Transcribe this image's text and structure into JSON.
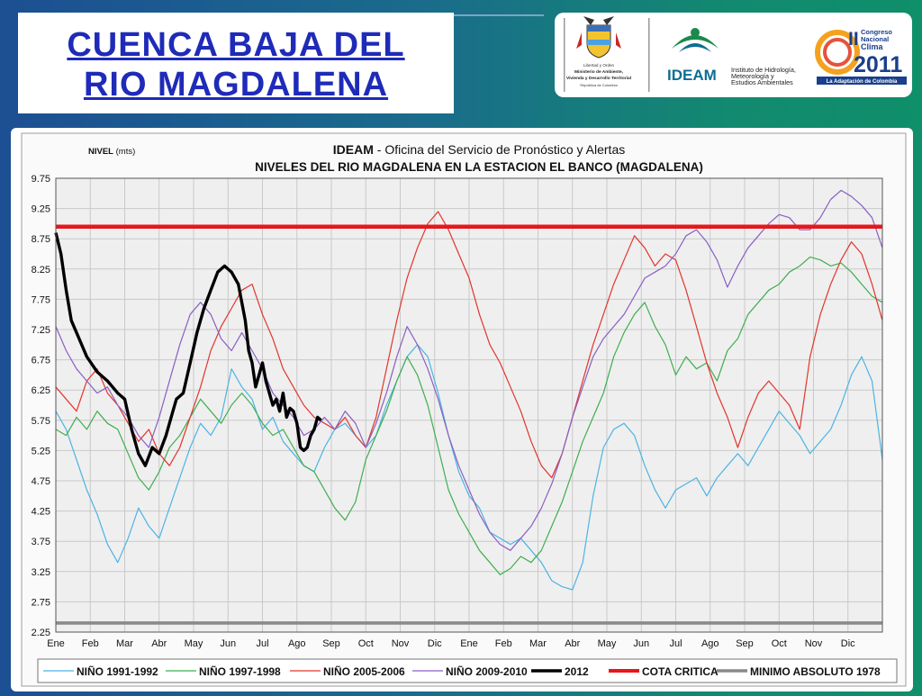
{
  "header": {
    "title_line1": "CUENCA  BAJA  DEL",
    "title_line2": "RIO  MAGDALENA"
  },
  "logos": {
    "ministerio": {
      "line1": "Libertad y Orden",
      "line2": "Ministerio de Ambiente,",
      "line3": "Vivienda y Desarrollo Territorial",
      "line4": "República de Colombia"
    },
    "ideam": {
      "name": "IDEAM",
      "line1": "Instituto de Hidrología,",
      "line2": "Meteorología y",
      "line3": "Estudios Ambientales"
    },
    "congreso": {
      "numeral": "II",
      "line1": "Congreso",
      "line2": "Nacional",
      "line3": "Clima",
      "year": "2011",
      "tagline": "La Adaptación de Colombia"
    }
  },
  "chart_data": {
    "type": "line",
    "title_prefix": "IDEAM",
    "title_rest": " - Oficina del Servicio de Pronóstico y Alertas",
    "subtitle": "NIVELES DEL RIO MAGDALENA EN LA ESTACION EL BANCO (MAGDALENA)",
    "ylabel_main": "NIVEL",
    "ylabel_unit": " (mts)",
    "ylim": [
      2.25,
      9.75
    ],
    "yticks": [
      "9.75",
      "9.25",
      "8.75",
      "8.25",
      "7.75",
      "7.25",
      "6.75",
      "6.25",
      "5.75",
      "5.25",
      "4.75",
      "4.25",
      "3.75",
      "3.25",
      "2.75",
      "2.25"
    ],
    "xlim": [
      0,
      24
    ],
    "x_tick_labels": [
      "Ene",
      "Feb",
      "Mar",
      "Abr",
      "May",
      "Jun",
      "Jul",
      "Ago",
      "Sep",
      "Oct",
      "Nov",
      "Dic",
      "Ene",
      "Feb",
      "Mar",
      "Abr",
      "May",
      "Jun",
      "Jul",
      "Ago",
      "Sep",
      "Oct",
      "Nov",
      "Dic"
    ],
    "grid": true,
    "legend_position": "bottom",
    "series": [
      {
        "name": "NIÑO 1991-1992",
        "color": "#4cb4e3",
        "width": 1.2,
        "x": [
          0,
          0.3,
          0.6,
          0.9,
          1.2,
          1.5,
          1.8,
          2.1,
          2.4,
          2.7,
          3.0,
          3.3,
          3.6,
          3.9,
          4.2,
          4.5,
          4.8,
          5.1,
          5.4,
          5.7,
          6.0,
          6.3,
          6.6,
          6.9,
          7.2,
          7.5,
          7.8,
          8.1,
          8.4,
          8.7,
          9.0,
          9.3,
          9.6,
          9.9,
          10.2,
          10.5,
          10.8,
          11.1,
          11.4,
          11.7,
          12.0,
          12.3,
          12.6,
          12.9,
          13.2,
          13.5,
          13.8,
          14.1,
          14.4,
          14.7,
          15.0,
          15.3,
          15.6,
          15.9,
          16.2,
          16.5,
          16.8,
          17.1,
          17.4,
          17.7,
          18.0,
          18.3,
          18.6,
          18.9,
          19.2,
          19.5,
          19.8,
          20.1,
          20.4,
          20.7,
          21.0,
          21.3,
          21.6,
          21.9,
          22.2,
          22.5,
          22.8,
          23.1,
          23.4,
          23.7,
          24.0
        ],
        "y": [
          5.9,
          5.6,
          5.1,
          4.6,
          4.2,
          3.7,
          3.4,
          3.8,
          4.3,
          4.0,
          3.8,
          4.3,
          4.8,
          5.3,
          5.7,
          5.5,
          5.8,
          6.6,
          6.3,
          6.1,
          5.6,
          5.8,
          5.4,
          5.2,
          5.0,
          4.9,
          5.3,
          5.6,
          5.7,
          5.5,
          5.3,
          5.5,
          6.0,
          6.4,
          6.8,
          7.0,
          6.8,
          6.2,
          5.5,
          4.9,
          4.5,
          4.3,
          3.9,
          3.8,
          3.7,
          3.8,
          3.6,
          3.4,
          3.1,
          3.0,
          2.95,
          3.4,
          4.5,
          5.3,
          5.6,
          5.7,
          5.5,
          5.0,
          4.6,
          4.3,
          4.6,
          4.7,
          4.8,
          4.5,
          4.8,
          5.0,
          5.2,
          5.0,
          5.3,
          5.6,
          5.9,
          5.7,
          5.5,
          5.2,
          5.4,
          5.6,
          6.0,
          6.5,
          6.8,
          6.4,
          5.1
        ]
      },
      {
        "name": "NIÑO 1997-1998",
        "color": "#3fae4f",
        "width": 1.2,
        "x": [
          0,
          0.3,
          0.6,
          0.9,
          1.2,
          1.5,
          1.8,
          2.1,
          2.4,
          2.7,
          3.0,
          3.3,
          3.6,
          3.9,
          4.2,
          4.5,
          4.8,
          5.1,
          5.4,
          5.7,
          6.0,
          6.3,
          6.6,
          6.9,
          7.2,
          7.5,
          7.8,
          8.1,
          8.4,
          8.7,
          9.0,
          9.3,
          9.6,
          9.9,
          10.2,
          10.5,
          10.8,
          11.1,
          11.4,
          11.7,
          12.0,
          12.3,
          12.6,
          12.9,
          13.2,
          13.5,
          13.8,
          14.1,
          14.4,
          14.7,
          15.0,
          15.3,
          15.6,
          15.9,
          16.2,
          16.5,
          16.8,
          17.1,
          17.4,
          17.7,
          18.0,
          18.3,
          18.6,
          18.9,
          19.2,
          19.5,
          19.8,
          20.1,
          20.4,
          20.7,
          21.0,
          21.3,
          21.6,
          21.9,
          22.2,
          22.5,
          22.8,
          23.1,
          23.4,
          23.7,
          24.0
        ],
        "y": [
          5.6,
          5.5,
          5.8,
          5.6,
          5.9,
          5.7,
          5.6,
          5.2,
          4.8,
          4.6,
          4.9,
          5.3,
          5.5,
          5.8,
          6.1,
          5.9,
          5.7,
          6.0,
          6.2,
          6.0,
          5.7,
          5.5,
          5.6,
          5.3,
          5.0,
          4.9,
          4.6,
          4.3,
          4.1,
          4.4,
          5.1,
          5.5,
          5.9,
          6.4,
          6.8,
          6.5,
          6.0,
          5.3,
          4.6,
          4.2,
          3.9,
          3.6,
          3.4,
          3.2,
          3.3,
          3.5,
          3.4,
          3.6,
          4.0,
          4.4,
          4.9,
          5.4,
          5.8,
          6.2,
          6.8,
          7.2,
          7.5,
          7.7,
          7.3,
          7.0,
          6.5,
          6.8,
          6.6,
          6.7,
          6.4,
          6.9,
          7.1,
          7.5,
          7.7,
          7.9,
          8.0,
          8.2,
          8.3,
          8.45,
          8.4,
          8.3,
          8.35,
          8.2,
          8.0,
          7.8,
          7.7
        ]
      },
      {
        "name": "NIÑO 2005-2006",
        "color": "#e2352b",
        "width": 1.2,
        "x": [
          0,
          0.3,
          0.6,
          0.9,
          1.2,
          1.5,
          1.8,
          2.1,
          2.4,
          2.7,
          3.0,
          3.3,
          3.6,
          3.9,
          4.2,
          4.5,
          4.8,
          5.1,
          5.4,
          5.7,
          6.0,
          6.3,
          6.6,
          6.9,
          7.2,
          7.5,
          7.8,
          8.1,
          8.4,
          8.7,
          9.0,
          9.3,
          9.6,
          9.9,
          10.2,
          10.5,
          10.8,
          11.1,
          11.4,
          11.7,
          12.0,
          12.3,
          12.6,
          12.9,
          13.2,
          13.5,
          13.8,
          14.1,
          14.4,
          14.7,
          15.0,
          15.3,
          15.6,
          15.9,
          16.2,
          16.5,
          16.8,
          17.1,
          17.4,
          17.7,
          18.0,
          18.3,
          18.6,
          18.9,
          19.2,
          19.5,
          19.8,
          20.1,
          20.4,
          20.7,
          21.0,
          21.3,
          21.6,
          21.9,
          22.2,
          22.5,
          22.8,
          23.1,
          23.4,
          23.7,
          24.0
        ],
        "y": [
          6.3,
          6.1,
          5.9,
          6.4,
          6.6,
          6.2,
          6.0,
          5.7,
          5.4,
          5.6,
          5.2,
          5.0,
          5.3,
          5.8,
          6.3,
          6.9,
          7.3,
          7.6,
          7.9,
          8.0,
          7.5,
          7.1,
          6.6,
          6.3,
          6.0,
          5.8,
          5.7,
          5.6,
          5.8,
          5.5,
          5.3,
          5.8,
          6.6,
          7.4,
          8.1,
          8.6,
          9.0,
          9.2,
          8.9,
          8.5,
          8.1,
          7.5,
          7.0,
          6.7,
          6.3,
          5.9,
          5.4,
          5.0,
          4.8,
          5.2,
          5.8,
          6.4,
          7.0,
          7.5,
          8.0,
          8.4,
          8.8,
          8.6,
          8.3,
          8.5,
          8.4,
          7.9,
          7.3,
          6.7,
          6.2,
          5.8,
          5.3,
          5.8,
          6.2,
          6.4,
          6.2,
          6.0,
          5.6,
          6.8,
          7.5,
          8.0,
          8.4,
          8.7,
          8.5,
          8.0,
          7.4
        ]
      },
      {
        "name": "NIÑO 2009-2010",
        "color": "#8a5fc2",
        "width": 1.2,
        "x": [
          0,
          0.3,
          0.6,
          0.9,
          1.2,
          1.5,
          1.8,
          2.1,
          2.4,
          2.7,
          3.0,
          3.3,
          3.6,
          3.9,
          4.2,
          4.5,
          4.8,
          5.1,
          5.4,
          5.7,
          6.0,
          6.3,
          6.6,
          6.9,
          7.2,
          7.5,
          7.8,
          8.1,
          8.4,
          8.7,
          9.0,
          9.3,
          9.6,
          9.9,
          10.2,
          10.5,
          10.8,
          11.1,
          11.4,
          11.7,
          12.0,
          12.3,
          12.6,
          12.9,
          13.2,
          13.5,
          13.8,
          14.1,
          14.4,
          14.7,
          15.0,
          15.3,
          15.6,
          15.9,
          16.2,
          16.5,
          16.8,
          17.1,
          17.4,
          17.7,
          18.0,
          18.3,
          18.6,
          18.9,
          19.2,
          19.5,
          19.8,
          20.1,
          20.4,
          20.7,
          21.0,
          21.3,
          21.6,
          21.9,
          22.2,
          22.5,
          22.8,
          23.1,
          23.4,
          23.7,
          24.0
        ],
        "y": [
          7.3,
          6.9,
          6.6,
          6.4,
          6.2,
          6.3,
          6.0,
          5.8,
          5.5,
          5.3,
          5.8,
          6.4,
          7.0,
          7.5,
          7.7,
          7.5,
          7.1,
          6.9,
          7.2,
          6.9,
          6.6,
          6.2,
          6.0,
          5.8,
          5.5,
          5.6,
          5.8,
          5.6,
          5.9,
          5.7,
          5.3,
          5.7,
          6.2,
          6.8,
          7.3,
          7.0,
          6.6,
          6.1,
          5.5,
          5.0,
          4.6,
          4.2,
          3.9,
          3.7,
          3.6,
          3.8,
          4.0,
          4.3,
          4.7,
          5.2,
          5.8,
          6.3,
          6.8,
          7.1,
          7.3,
          7.5,
          7.8,
          8.1,
          8.2,
          8.3,
          8.5,
          8.8,
          8.9,
          8.7,
          8.4,
          7.95,
          8.3,
          8.6,
          8.8,
          9.0,
          9.15,
          9.1,
          8.9,
          8.9,
          9.1,
          9.4,
          9.55,
          9.45,
          9.3,
          9.1,
          8.6
        ]
      },
      {
        "name": "2012",
        "color": "#000000",
        "width": 3.4,
        "x": [
          0,
          0.15,
          0.3,
          0.45,
          0.6,
          0.9,
          1.2,
          1.5,
          1.8,
          2.0,
          2.2,
          2.4,
          2.6,
          2.8,
          3.0,
          3.2,
          3.35,
          3.5,
          3.7,
          3.9,
          4.1,
          4.3,
          4.5,
          4.7,
          4.9,
          5.1,
          5.3,
          5.5,
          5.6,
          5.7,
          5.8,
          5.9,
          6.0,
          6.1,
          6.2,
          6.3,
          6.4,
          6.5,
          6.6,
          6.7,
          6.8,
          6.9,
          7.0,
          7.1,
          7.2,
          7.3,
          7.4,
          7.5,
          7.6,
          7.7
        ],
        "y": [
          8.85,
          8.5,
          7.9,
          7.4,
          7.2,
          6.8,
          6.55,
          6.4,
          6.2,
          6.1,
          5.6,
          5.2,
          5.0,
          5.3,
          5.2,
          5.5,
          5.8,
          6.1,
          6.2,
          6.7,
          7.2,
          7.6,
          7.9,
          8.2,
          8.3,
          8.2,
          8.0,
          7.4,
          6.9,
          6.7,
          6.3,
          6.5,
          6.7,
          6.4,
          6.2,
          6.0,
          6.1,
          5.9,
          6.2,
          5.8,
          5.95,
          5.9,
          5.7,
          5.3,
          5.25,
          5.3,
          5.5,
          5.6,
          5.8,
          5.75
        ]
      },
      {
        "name": "COTA CRITICA",
        "color": "#e8161b",
        "width": 4.5,
        "x": [
          0,
          24
        ],
        "y": [
          8.95,
          8.95
        ]
      },
      {
        "name": "MINIMO ABSOLUTO 1978",
        "color": "#8a8a8a",
        "width": 3.6,
        "x": [
          0,
          24
        ],
        "y": [
          2.4,
          2.4
        ]
      }
    ]
  }
}
